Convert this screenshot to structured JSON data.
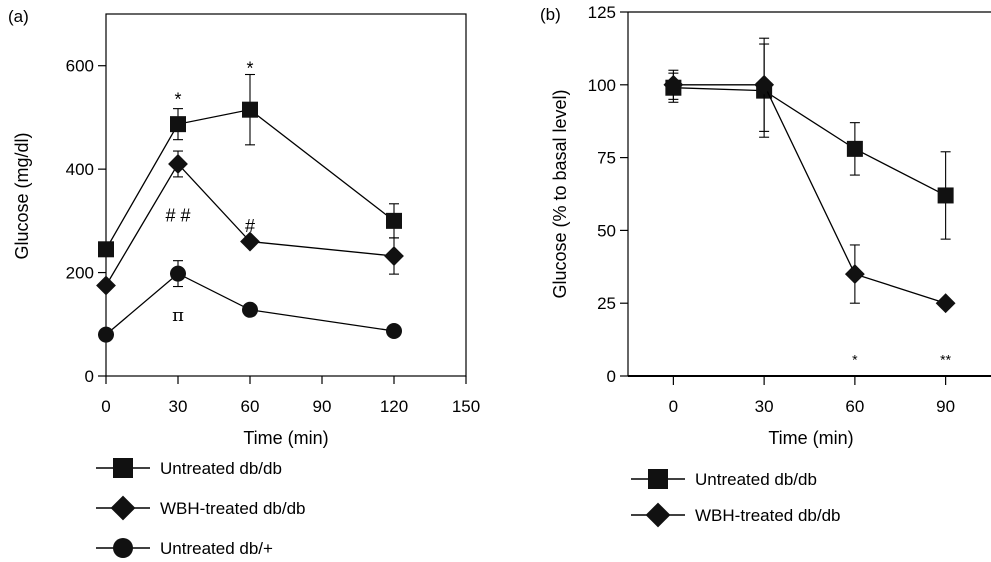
{
  "chart_data": [
    {
      "panel_label": "(a)",
      "type": "line",
      "xlabel": "Time (min)",
      "ylabel": "Glucose (mg/dl)",
      "xlim": [
        0,
        150
      ],
      "ylim": [
        0,
        700
      ],
      "x_ticks": [
        "0",
        "30",
        "60",
        "90",
        "120",
        "150"
      ],
      "y_ticks": [
        "0",
        "200",
        "400",
        "600"
      ],
      "x": [
        0,
        30,
        60,
        120
      ],
      "series": [
        {
          "name": "Untreated db/db",
          "marker": "square",
          "values": [
            245,
            487,
            515,
            300
          ],
          "errors": [
            null,
            30,
            68,
            33
          ]
        },
        {
          "name": "WBH-treated db/db",
          "marker": "diamond",
          "values": [
            175,
            410,
            260,
            232
          ],
          "errors": [
            null,
            25,
            null,
            35
          ]
        },
        {
          "name": "Untreated db/+",
          "marker": "circle",
          "values": [
            80,
            198,
            128,
            87
          ],
          "errors": [
            null,
            25,
            null,
            null
          ]
        }
      ],
      "annotations": [
        {
          "text": "*",
          "x": 30,
          "y": 535
        },
        {
          "text": "*",
          "x": 60,
          "y": 595
        },
        {
          "text": "# #",
          "x": 30,
          "y": 310
        },
        {
          "text": "#",
          "x": 60,
          "y": 290
        },
        {
          "text": "π",
          "x": 30,
          "y": 118
        }
      ]
    },
    {
      "panel_label": "(b)",
      "type": "line",
      "xlabel": "Time (min)",
      "ylabel": "Glucose  (% to basal level)",
      "xlim": [
        -15,
        105
      ],
      "ylim": [
        0,
        125
      ],
      "x_ticks": [
        "0",
        "30",
        "60",
        "90"
      ],
      "y_ticks": [
        "0",
        "25",
        "50",
        "75",
        "100",
        "125"
      ],
      "x": [
        0,
        30,
        60,
        90
      ],
      "series": [
        {
          "name": "Untreated db/db",
          "marker": "square",
          "values": [
            99,
            98,
            78,
            62
          ],
          "errors": [
            5,
            16,
            9,
            15
          ]
        },
        {
          "name": "WBH-treated db/db",
          "marker": "diamond",
          "values": [
            100,
            100,
            35,
            25
          ],
          "errors": [
            5,
            16,
            10,
            null
          ]
        }
      ],
      "annotations": [
        {
          "text": "*",
          "x": 60,
          "y": 6
        },
        {
          "text": "**",
          "x": 90,
          "y": 6
        }
      ]
    }
  ]
}
